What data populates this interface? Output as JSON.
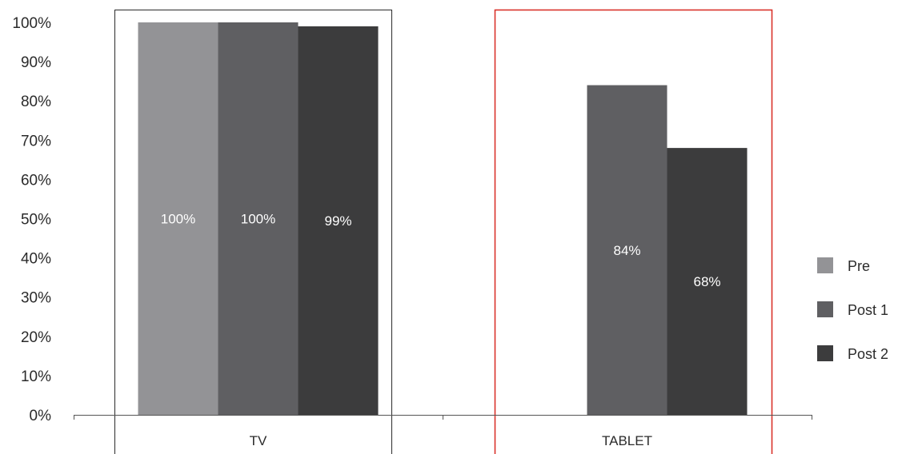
{
  "chart_data": {
    "type": "bar",
    "categories": [
      "TV",
      "TABLET"
    ],
    "series": [
      {
        "name": "Pre",
        "color": "#939396",
        "values": [
          100,
          null
        ]
      },
      {
        "name": "Post 1",
        "color": "#5f5f62",
        "values": [
          100,
          84
        ]
      },
      {
        "name": "Post 2",
        "color": "#3c3c3d",
        "values": [
          99,
          68
        ]
      }
    ],
    "data_labels": [
      [
        "100%",
        null
      ],
      [
        "100%",
        "84%"
      ],
      [
        "99%",
        "68%"
      ]
    ],
    "ylim": [
      0,
      100
    ],
    "yticks": [
      "0%",
      "10%",
      "20%",
      "30%",
      "40%",
      "50%",
      "60%",
      "70%",
      "80%",
      "90%",
      "100%"
    ],
    "legend_position": "right",
    "grid": false,
    "highlight": {
      "category": "TABLET",
      "color": "#d9322b"
    },
    "frame_color": "#2b2b2b"
  }
}
